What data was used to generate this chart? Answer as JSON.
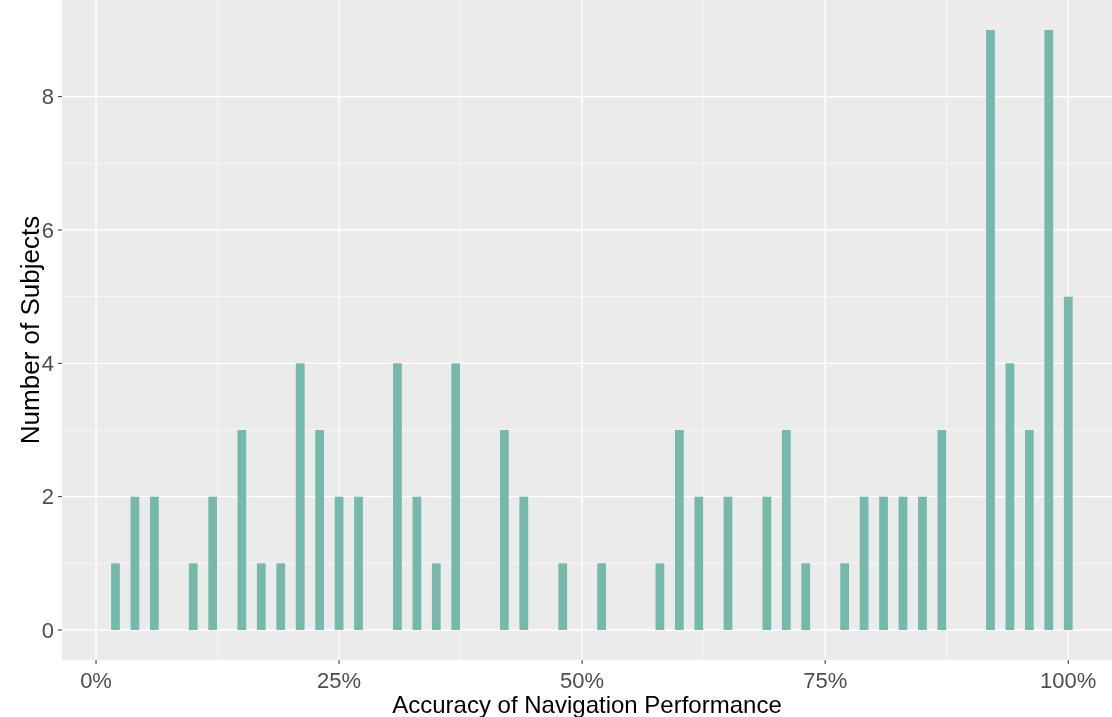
{
  "chart_data": {
    "type": "bar",
    "xlabel": "Accuracy of Navigation Performance",
    "ylabel": "Number of Subjects",
    "x": [
      2,
      4,
      6,
      10,
      12,
      15,
      17,
      19,
      21,
      23,
      25,
      27,
      31,
      33,
      35,
      37,
      42,
      44,
      48,
      52,
      58,
      60,
      62,
      65,
      69,
      71,
      73,
      77,
      79,
      81,
      83,
      85,
      87,
      92,
      94,
      96,
      98,
      100
    ],
    "values": [
      1,
      2,
      2,
      1,
      2,
      3,
      1,
      1,
      4,
      3,
      2,
      2,
      4,
      2,
      1,
      4,
      3,
      2,
      1,
      1,
      1,
      3,
      2,
      2,
      2,
      3,
      1,
      1,
      2,
      2,
      2,
      2,
      3,
      9,
      4,
      3,
      9,
      5
    ],
    "color": "#76b9ab",
    "xlim": [
      -3.5,
      104.5
    ],
    "xticks": [
      {
        "value": 0,
        "label": "0%"
      },
      {
        "value": 25,
        "label": "25%"
      },
      {
        "value": 50,
        "label": "50%"
      },
      {
        "value": 75,
        "label": "75%"
      },
      {
        "value": 100,
        "label": "100%"
      }
    ],
    "ylim": [
      -0.45,
      9.45
    ],
    "yticks": [
      0,
      2,
      4,
      6,
      8
    ],
    "grid": true
  }
}
